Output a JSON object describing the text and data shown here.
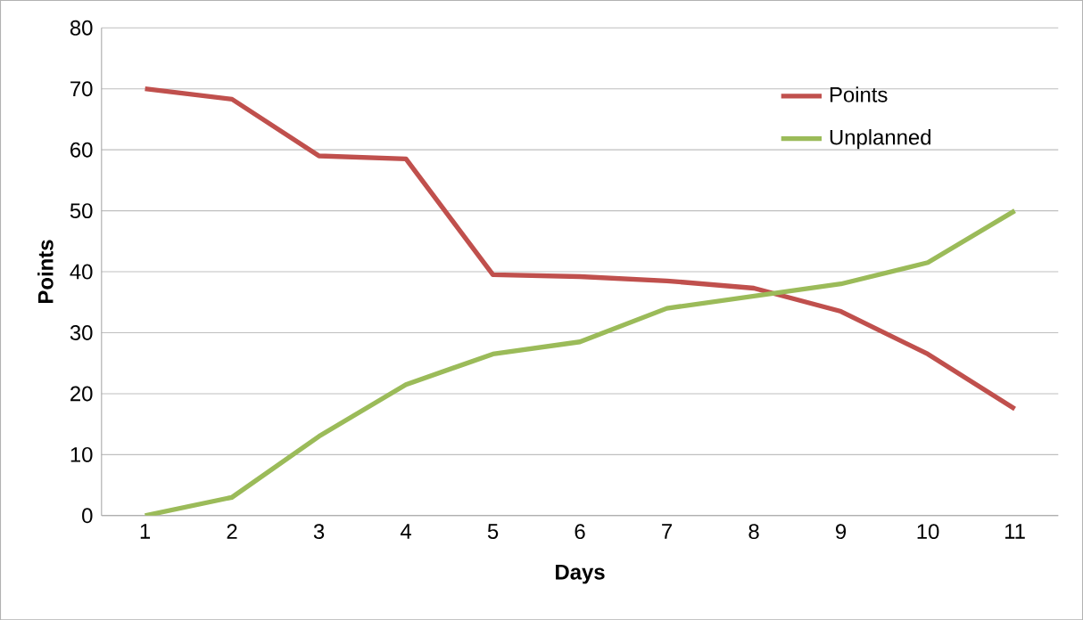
{
  "chart_data": {
    "type": "line",
    "xlabel": "Days",
    "ylabel": "Points",
    "categories": [
      "1",
      "2",
      "3",
      "4",
      "5",
      "6",
      "7",
      "8",
      "9",
      "10",
      "11"
    ],
    "series": [
      {
        "name": "Points",
        "color": "#c0504d",
        "values": [
          70,
          68.3,
          59,
          58.5,
          39.5,
          39.2,
          38.5,
          37.3,
          33.5,
          26.5,
          17.5
        ]
      },
      {
        "name": "Unplanned",
        "color": "#9bbb59",
        "values": [
          0,
          3,
          13,
          21.5,
          26.5,
          28.5,
          34,
          36,
          38,
          41.5,
          50
        ]
      }
    ],
    "ylim": [
      0,
      80
    ],
    "yticks": [
      0,
      10,
      20,
      30,
      40,
      50,
      60,
      70,
      80
    ],
    "grid": "y",
    "legend": "top right",
    "marker": "none",
    "line_style": "solid"
  }
}
